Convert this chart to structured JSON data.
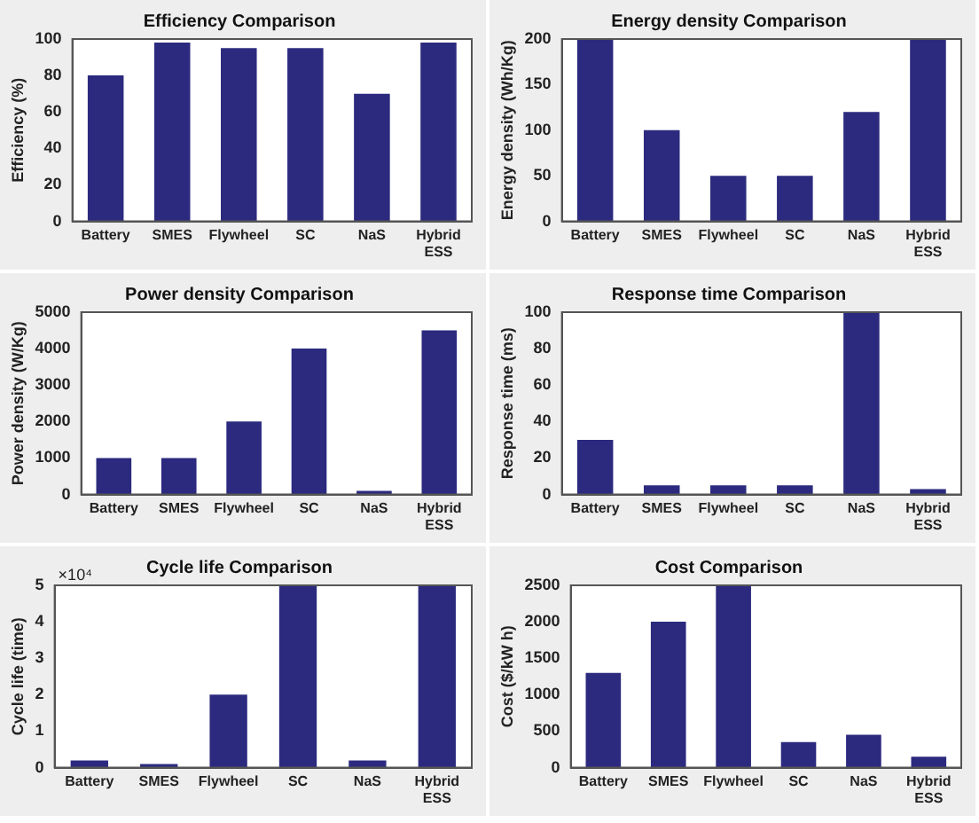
{
  "chart_data": [
    {
      "type": "bar",
      "title": "Efficiency Comparison",
      "ylabel": "Efficiency (%)",
      "categories": [
        "Battery",
        "SMES",
        "Flywheel",
        "SC",
        "NaS",
        "Hybrid ESS"
      ],
      "values": [
        80,
        98,
        95,
        95,
        70,
        98
      ],
      "color": "#2b2a7e",
      "ylim": [
        0,
        100
      ],
      "yticks": [
        0,
        20,
        40,
        60,
        80,
        100
      ]
    },
    {
      "type": "bar",
      "title": "Energy density Comparison",
      "ylabel": "Energy density (Wh/Kg)",
      "categories": [
        "Battery",
        "SMES",
        "Flywheel",
        "SC",
        "NaS",
        "Hybrid ESS"
      ],
      "values": [
        200,
        100,
        50,
        50,
        120,
        200
      ],
      "color": "#2b2a7e",
      "ylim": [
        0,
        200
      ],
      "yticks": [
        0,
        50,
        100,
        150,
        200
      ]
    },
    {
      "type": "bar",
      "title": "Power density Comparison",
      "ylabel": "Power density (W/Kg)",
      "categories": [
        "Battery",
        "SMES",
        "Flywheel",
        "SC",
        "NaS",
        "Hybrid ESS"
      ],
      "values": [
        1000,
        1000,
        2000,
        4000,
        100,
        4500
      ],
      "color": "#2b2a7e",
      "ylim": [
        0,
        5000
      ],
      "yticks": [
        0,
        1000,
        2000,
        3000,
        4000,
        5000
      ]
    },
    {
      "type": "bar",
      "title": "Response time Comparison",
      "ylabel": "Response time (ms)",
      "categories": [
        "Battery",
        "SMES",
        "Flywheel",
        "SC",
        "NaS",
        "Hybrid ESS"
      ],
      "values": [
        30,
        5,
        5,
        5,
        100,
        3
      ],
      "color": "#2b2a7e",
      "ylim": [
        0,
        100
      ],
      "yticks": [
        0,
        20,
        40,
        60,
        80,
        100
      ]
    },
    {
      "type": "bar",
      "title": "Cycle life Comparison",
      "ylabel": "Cycle life (time)",
      "categories": [
        "Battery",
        "SMES",
        "Flywheel",
        "SC",
        "NaS",
        "Hybrid ESS"
      ],
      "values": [
        0.2,
        0.1,
        2,
        5,
        0.2,
        5
      ],
      "color": "#2b2a7e",
      "ylim": [
        0,
        5
      ],
      "yticks": [
        0,
        1,
        2,
        3,
        4,
        5
      ],
      "annotations": [
        "×10⁴"
      ]
    },
    {
      "type": "bar",
      "title": "Cost Comparison",
      "ylabel": "Cost ($/kW h)",
      "categories": [
        "Battery",
        "SMES",
        "Flywheel",
        "SC",
        "NaS",
        "Hybrid ESS"
      ],
      "values": [
        1300,
        2000,
        2500,
        350,
        450,
        150
      ],
      "color": "#2b2a7e",
      "ylim": [
        0,
        2500
      ],
      "yticks": [
        0,
        500,
        1000,
        1500,
        2000,
        2500
      ]
    }
  ]
}
